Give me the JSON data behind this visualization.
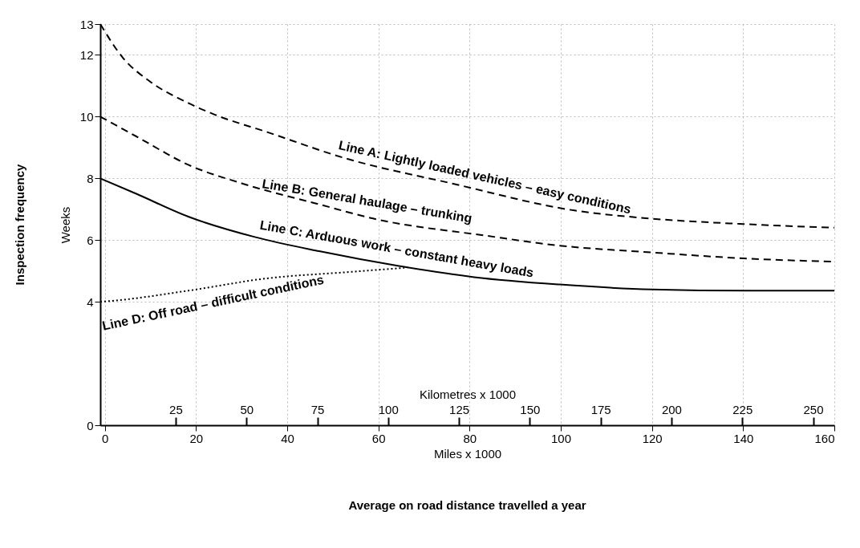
{
  "chart_data": {
    "type": "line",
    "xlabel": "Miles x 1000",
    "ylabel": "Weeks",
    "x2label": "Kilometres x 1000",
    "xlim": [
      -1,
      160
    ],
    "xticks": [
      0,
      20,
      40,
      60,
      80,
      100,
      120,
      140,
      160
    ],
    "x2lim": [
      -1.6,
      257.5
    ],
    "x2ticks": [
      25,
      50,
      75,
      100,
      125,
      150,
      175,
      200,
      225,
      250
    ],
    "ylim": [
      0,
      13
    ],
    "yticks": [
      0,
      4,
      6,
      8,
      10,
      12,
      13
    ],
    "grid": true,
    "series": [
      {
        "name": "Line A: Lightly loaded vehicles – easy conditions",
        "color": "#000000",
        "line_style": "dashed",
        "x": [
          -1,
          4,
          9.7,
          18.3,
          24.2,
          35.6,
          53,
          76,
          103,
          119.5,
          140,
          160
        ],
        "values": [
          13,
          11.9,
          11.16,
          10.44,
          10.06,
          9.5,
          8.64,
          7.84,
          6.96,
          6.7,
          6.52,
          6.4
        ]
      },
      {
        "name": "Line B: General haulage – trunking",
        "color": "#000000",
        "line_style": "dashed",
        "x": [
          -1,
          6.9,
          18.3,
          30,
          47,
          58.8,
          83.7,
          99.8,
          120,
          141,
          160
        ],
        "values": [
          10,
          9.36,
          8.44,
          7.84,
          7.16,
          6.7,
          6.14,
          5.82,
          5.6,
          5.4,
          5.3
        ]
      },
      {
        "name": "Line C: Arduous work – constant heavy loads",
        "color": "#000000",
        "line_style": "solid",
        "x": [
          -1,
          6.9,
          18.3,
          32.9,
          47,
          64.5,
          81,
          99.8,
          120,
          141,
          160
        ],
        "values": [
          8,
          7.5,
          6.76,
          6.1,
          5.64,
          5.16,
          4.8,
          4.56,
          4.4,
          4.36,
          4.36
        ]
      },
      {
        "name": "Line D: Off road – difficult conditions",
        "color": "#000000",
        "line_style": "dotted",
        "x": [
          -1,
          2.2,
          18.3,
          35.6,
          53,
          65.7
        ],
        "values": [
          4,
          4.04,
          4.36,
          4.76,
          4.96,
          5.1
        ]
      }
    ],
    "annotations": [
      "Inspection frequency",
      "Average on road distance travelled a year"
    ]
  }
}
